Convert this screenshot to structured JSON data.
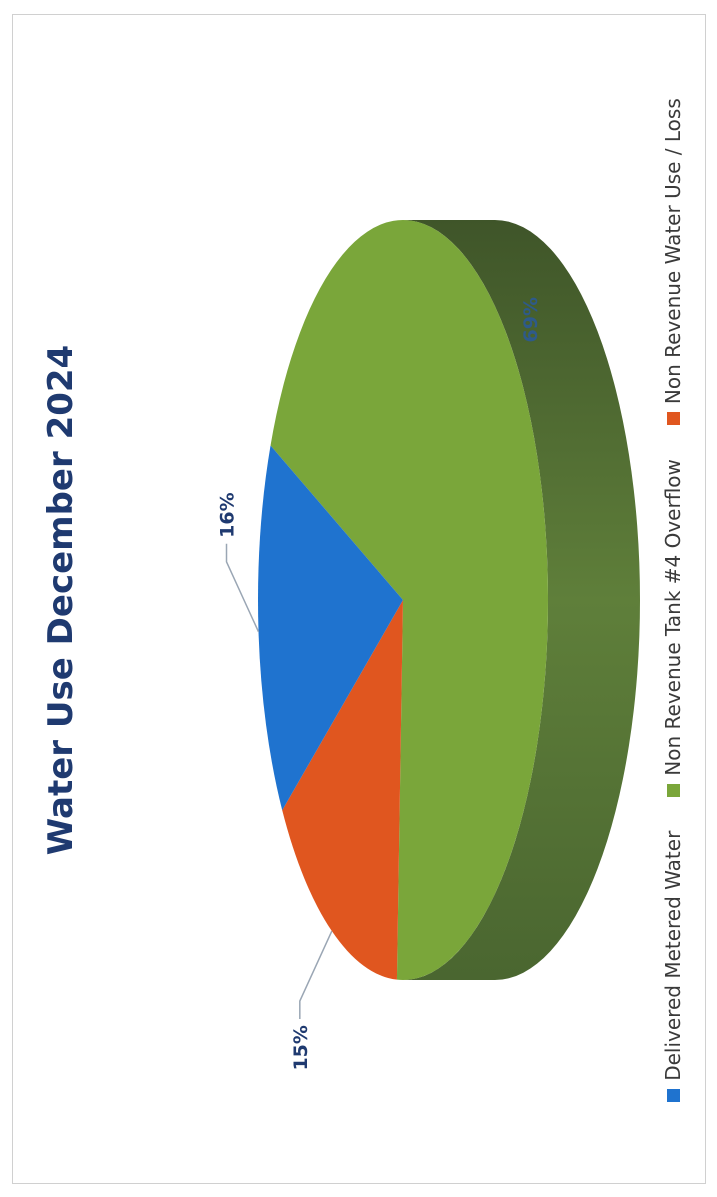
{
  "chart_data": {
    "type": "pie",
    "title": "Water Use December 2024",
    "categories": [
      "Delivered Metered Water",
      "Non Revenue Tank #4 Overflow",
      "Non Revenue Water Use / Loss"
    ],
    "values": [
      16,
      69,
      15
    ],
    "data_labels": [
      "16%",
      "69%",
      "15%"
    ],
    "colors": [
      "#1f73cf",
      "#7aa63a",
      "#e0561f"
    ],
    "legend": {
      "placement": "bottom",
      "entries": [
        "Delivered Metered Water",
        "Non Revenue Tank #4 Overflow",
        "Non Revenue Water Use / Loss"
      ]
    },
    "style": "3d-pie"
  }
}
